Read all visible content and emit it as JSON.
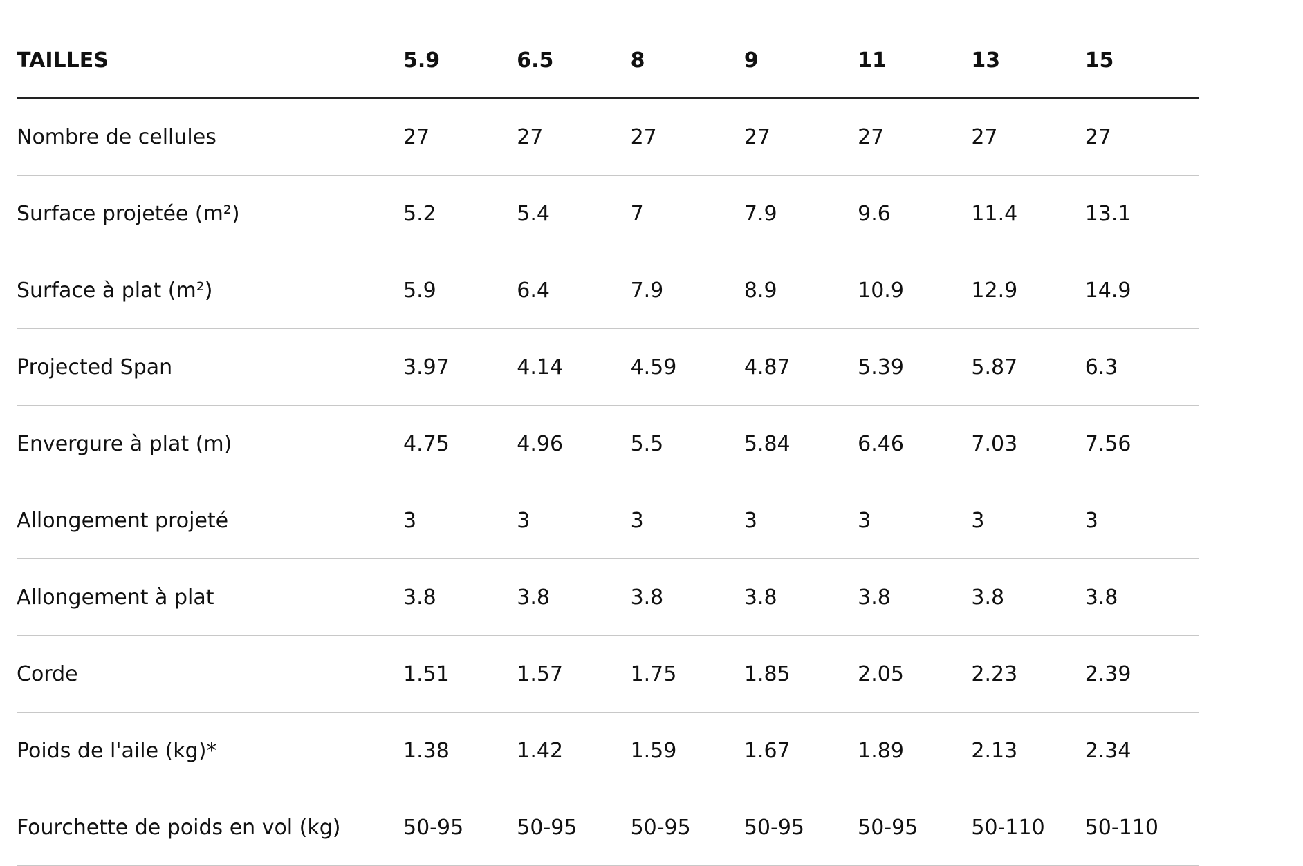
{
  "table": {
    "header": [
      "TAILLES",
      "5.9",
      "6.5",
      "8",
      "9",
      "11",
      "13",
      "15"
    ],
    "rows": [
      [
        "Nombre de cellules",
        "27",
        "27",
        "27",
        "27",
        "27",
        "27",
        "27"
      ],
      [
        "Surface projetée (m²)",
        "5.2",
        "5.4",
        "7",
        "7.9",
        "9.6",
        "11.4",
        "13.1"
      ],
      [
        "Surface à plat (m²)",
        "5.9",
        "6.4",
        "7.9",
        "8.9",
        "10.9",
        "12.9",
        "14.9"
      ],
      [
        "Projected Span",
        "3.97",
        "4.14",
        "4.59",
        "4.87",
        "5.39",
        "5.87",
        "6.3"
      ],
      [
        "Envergure à plat (m)",
        "4.75",
        "4.96",
        "5.5",
        "5.84",
        "6.46",
        "7.03",
        "7.56"
      ],
      [
        "Allongement projeté",
        "3",
        "3",
        "3",
        "3",
        "3",
        "3",
        "3"
      ],
      [
        "Allongement à plat",
        "3.8",
        "3.8",
        "3.8",
        "3.8",
        "3.8",
        "3.8",
        "3.8"
      ],
      [
        "Corde",
        "1.51",
        "1.57",
        "1.75",
        "1.85",
        "2.05",
        "2.23",
        "2.39"
      ],
      [
        "Poids de l'aile (kg)*",
        "1.38",
        "1.42",
        "1.59",
        "1.67",
        "1.89",
        "2.13",
        "2.34"
      ],
      [
        "Fourchette de poids en vol (kg)",
        "50-95",
        "50-95",
        "50-95",
        "50-95",
        "50-95",
        "50-110",
        "50-110"
      ]
    ]
  }
}
